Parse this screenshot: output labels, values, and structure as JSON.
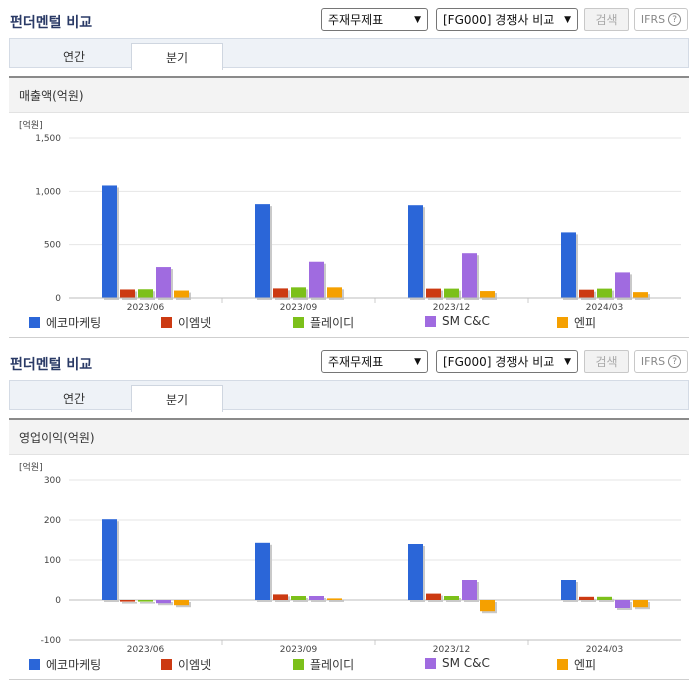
{
  "colors": {
    "series": [
      "#2b66d8",
      "#cc3a12",
      "#7cc01a",
      "#a06be0",
      "#f5a000"
    ]
  },
  "sections": [
    {
      "title": "펀더멘털 비교",
      "report_select": "주재무제표",
      "peer_select": "[FG000] 경쟁사 비교",
      "search_label": "검색",
      "ifrs_label": "IFRS",
      "help_label": "?",
      "tabs": [
        "연간",
        "분기"
      ],
      "active_tab": "분기",
      "metric_title": "매출액(억원)",
      "unit_label": "[억원]",
      "chart_data": {
        "type": "bar",
        "title": "매출액(억원)",
        "ylabel": "[억원]",
        "ylim": [
          0,
          1500
        ],
        "yticks": [
          0,
          500,
          1000,
          1500
        ],
        "ytick_labels": [
          "0",
          "500",
          "1,000",
          "1,500"
        ],
        "categories": [
          "2023/06",
          "2023/09",
          "2023/12",
          "2024/03"
        ],
        "series": [
          {
            "name": "에코마케팅",
            "values": [
              1055,
              880,
              870,
              615
            ]
          },
          {
            "name": "이엠넷",
            "values": [
              80,
              90,
              88,
              78
            ]
          },
          {
            "name": "플레이디",
            "values": [
              82,
              100,
              88,
              88
            ]
          },
          {
            "name": "SM C&C",
            "values": [
              290,
              340,
              420,
              240
            ]
          },
          {
            "name": "엔피",
            "values": [
              70,
              100,
              65,
              55
            ]
          }
        ]
      }
    },
    {
      "title": "펀더멘털 비교",
      "report_select": "주재무제표",
      "peer_select": "[FG000] 경쟁사 비교",
      "search_label": "검색",
      "ifrs_label": "IFRS",
      "help_label": "?",
      "tabs": [
        "연간",
        "분기"
      ],
      "active_tab": "분기",
      "metric_title": "영업이익(억원)",
      "unit_label": "[억원]",
      "chart_data": {
        "type": "bar",
        "title": "영업이익(억원)",
        "ylabel": "[억원]",
        "ylim": [
          -100,
          300
        ],
        "yticks": [
          -100,
          0,
          100,
          200,
          300
        ],
        "ytick_labels": [
          "-100",
          "0",
          "100",
          "200",
          "300"
        ],
        "categories": [
          "2023/06",
          "2023/09",
          "2023/12",
          "2024/03"
        ],
        "series": [
          {
            "name": "에코마케팅",
            "values": [
              202,
              143,
              140,
              50
            ]
          },
          {
            "name": "이엠넷",
            "values": [
              -4,
              14,
              16,
              8
            ]
          },
          {
            "name": "플레이디",
            "values": [
              -4,
              10,
              10,
              8
            ]
          },
          {
            "name": "SM C&C",
            "values": [
              -8,
              10,
              50,
              -20
            ]
          },
          {
            "name": "엔피",
            "values": [
              -13,
              4,
              -28,
              -18
            ]
          }
        ]
      }
    }
  ]
}
